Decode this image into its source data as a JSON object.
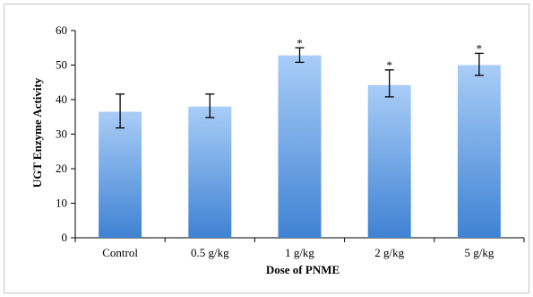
{
  "chart_data": {
    "type": "bar",
    "title": "",
    "xlabel": "Dose of PNME",
    "ylabel": "UGT Enzyme Activity",
    "ylim": [
      0,
      60
    ],
    "yticks": [
      0,
      10,
      20,
      30,
      40,
      50,
      60
    ],
    "categories": [
      "Control",
      "0.5 g/kg",
      "1 g/kg",
      "2 g/kg",
      "5 g/kg"
    ],
    "values": [
      36.5,
      38.0,
      52.8,
      44.2,
      50.0
    ],
    "error_low": [
      31.8,
      34.8,
      50.8,
      40.8,
      47.0
    ],
    "error_high": [
      41.6,
      41.6,
      55.0,
      48.6,
      53.4
    ],
    "significance": [
      "",
      "",
      "*",
      "*",
      "*"
    ],
    "grid": false,
    "legend": "none",
    "bar_gradient": [
      "#a9cdf7",
      "#3f82d3"
    ]
  }
}
